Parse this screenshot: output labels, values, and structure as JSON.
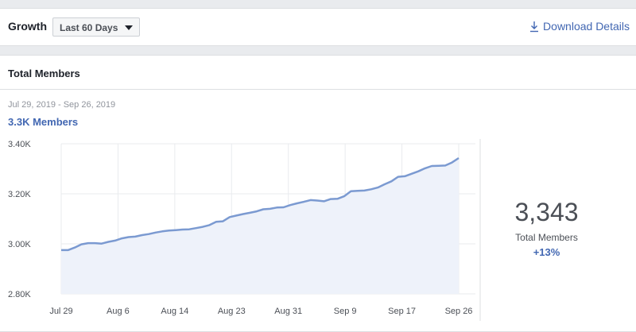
{
  "header": {
    "title": "Growth",
    "range_selected": "Last 60 Days",
    "download_label": "Download Details"
  },
  "members": {
    "title": "Total Members",
    "date_range": "Jul 29, 2019 - Sep 26, 2019",
    "summary": "3.3K Members",
    "total": "3,343",
    "total_label": "Total Members",
    "change": "+13%"
  },
  "colors": {
    "accent": "#4267b2",
    "line": "#7b9ad1",
    "area": "#eef2fa",
    "grid": "#e9ebee"
  },
  "chart_data": {
    "type": "area",
    "ylim": [
      2800,
      3400
    ],
    "y_ticks": [
      3400,
      3200,
      3000,
      2800
    ],
    "y_tick_labels": [
      "3.40K",
      "3.20K",
      "3.00K",
      "2.80K"
    ],
    "x_tick_labels": [
      "Jul 29",
      "Aug 6",
      "Aug 14",
      "Aug 23",
      "Aug 31",
      "Sep 9",
      "Sep 17",
      "Sep 26"
    ],
    "x_start": "2019-07-29",
    "x_end": "2019-09-26",
    "points": [
      [
        "2019-07-29",
        2975
      ],
      [
        "2019-07-30",
        2975
      ],
      [
        "2019-07-31",
        2985
      ],
      [
        "2019-08-01",
        2998
      ],
      [
        "2019-08-02",
        3003
      ],
      [
        "2019-08-03",
        3003
      ],
      [
        "2019-08-04",
        3001
      ],
      [
        "2019-08-05",
        3008
      ],
      [
        "2019-08-06",
        3013
      ],
      [
        "2019-08-07",
        3022
      ],
      [
        "2019-08-08",
        3027
      ],
      [
        "2019-08-09",
        3029
      ],
      [
        "2019-08-10",
        3035
      ],
      [
        "2019-08-11",
        3039
      ],
      [
        "2019-08-12",
        3045
      ],
      [
        "2019-08-13",
        3050
      ],
      [
        "2019-08-14",
        3053
      ],
      [
        "2019-08-15",
        3055
      ],
      [
        "2019-08-16",
        3057
      ],
      [
        "2019-08-17",
        3058
      ],
      [
        "2019-08-18",
        3063
      ],
      [
        "2019-08-19",
        3068
      ],
      [
        "2019-08-20",
        3075
      ],
      [
        "2019-08-21",
        3088
      ],
      [
        "2019-08-22",
        3090
      ],
      [
        "2019-08-23",
        3107
      ],
      [
        "2019-08-24",
        3113
      ],
      [
        "2019-08-25",
        3119
      ],
      [
        "2019-08-26",
        3124
      ],
      [
        "2019-08-27",
        3130
      ],
      [
        "2019-08-28",
        3138
      ],
      [
        "2019-08-29",
        3140
      ],
      [
        "2019-08-30",
        3145
      ],
      [
        "2019-08-31",
        3146
      ],
      [
        "2019-09-01",
        3155
      ],
      [
        "2019-09-02",
        3162
      ],
      [
        "2019-09-03",
        3168
      ],
      [
        "2019-09-04",
        3175
      ],
      [
        "2019-09-05",
        3173
      ],
      [
        "2019-09-06",
        3170
      ],
      [
        "2019-09-07",
        3179
      ],
      [
        "2019-09-08",
        3180
      ],
      [
        "2019-09-09",
        3190
      ],
      [
        "2019-09-10",
        3210
      ],
      [
        "2019-09-11",
        3212
      ],
      [
        "2019-09-12",
        3213
      ],
      [
        "2019-09-13",
        3218
      ],
      [
        "2019-09-14",
        3225
      ],
      [
        "2019-09-15",
        3238
      ],
      [
        "2019-09-16",
        3250
      ],
      [
        "2019-09-17",
        3268
      ],
      [
        "2019-09-18",
        3270
      ],
      [
        "2019-09-19",
        3280
      ],
      [
        "2019-09-20",
        3290
      ],
      [
        "2019-09-21",
        3302
      ],
      [
        "2019-09-22",
        3311
      ],
      [
        "2019-09-23",
        3312
      ],
      [
        "2019-09-24",
        3313
      ],
      [
        "2019-09-25",
        3325
      ],
      [
        "2019-09-26",
        3343
      ]
    ]
  }
}
